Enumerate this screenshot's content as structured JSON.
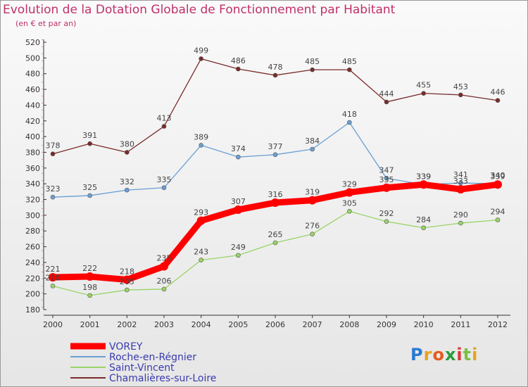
{
  "title": "Evolution de la Dotation Globale de Fonctionnement par Habitant",
  "subtitle": "(en € et par an)",
  "logo_text": "Proxiti",
  "chart_data": {
    "type": "line",
    "title": "Evolution de la Dotation Globale de Fonctionnement par Habitant",
    "subtitle": "(en € et par an)",
    "x": [
      "2000",
      "2001",
      "2002",
      "2003",
      "2004",
      "2005",
      "2006",
      "2007",
      "2008",
      "2009",
      "2010",
      "2011",
      "2012"
    ],
    "ylim": [
      180,
      520
    ],
    "yticks": [
      180,
      200,
      220,
      240,
      260,
      280,
      300,
      320,
      340,
      360,
      380,
      400,
      420,
      440,
      460,
      480,
      500,
      520
    ],
    "grid": false,
    "legend_position": "bottom-left",
    "series": [
      {
        "name": "VOREY",
        "color": "#ff0000",
        "values": [
          221,
          222,
          218,
          235,
          293,
          307,
          316,
          319,
          329,
          335,
          339,
          333,
          339
        ],
        "labels": [
          "221",
          "222",
          "218",
          "235",
          "293",
          "307",
          "316",
          "319",
          "329",
          "335",
          "339",
          "333",
          "339"
        ]
      },
      {
        "name": "Roche-en-Régnier",
        "color": "#6a9fd4",
        "values": [
          323,
          325,
          332,
          335,
          389,
          374,
          377,
          384,
          418,
          347,
          339,
          341,
          340
        ],
        "labels": [
          "323",
          "325",
          "332",
          "335",
          "389",
          "374",
          "377",
          "384",
          "418",
          "347",
          "339",
          "341",
          "340"
        ]
      },
      {
        "name": "Saint-Vincent",
        "color": "#99d466",
        "values": [
          210,
          198,
          205,
          206,
          243,
          249,
          265,
          276,
          305,
          292,
          284,
          290,
          294
        ],
        "labels": [
          "210",
          "198",
          "205",
          "206",
          "243",
          "249",
          "265",
          "276",
          "305",
          "292",
          "284",
          "290",
          "294"
        ]
      },
      {
        "name": "Chamalières-sur-Loire",
        "color": "#7a2a2a",
        "values": [
          378,
          391,
          380,
          413,
          499,
          486,
          478,
          485,
          485,
          444,
          455,
          453,
          446
        ],
        "labels": [
          "378",
          "391",
          "380",
          "413",
          "499",
          "486",
          "478",
          "485",
          "485",
          "444",
          "455",
          "453",
          "446"
        ]
      }
    ]
  }
}
